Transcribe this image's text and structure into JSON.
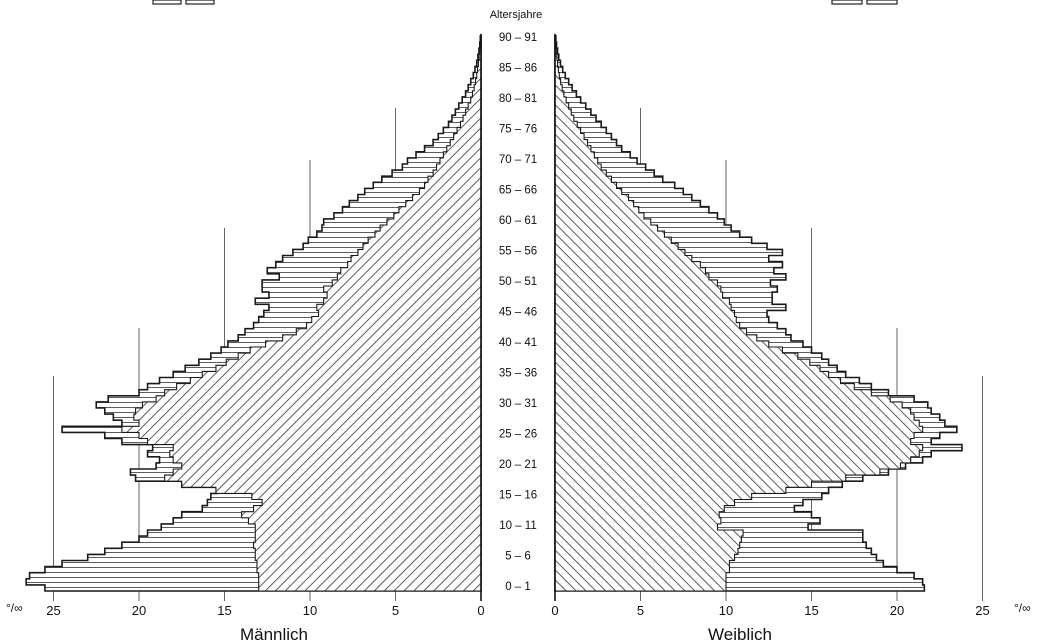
{
  "chart_data": {
    "type": "population-pyramid",
    "title": "Altersjahre",
    "sides": {
      "left": {
        "label": "Männlich"
      },
      "right": {
        "label": "Weiblich"
      }
    },
    "unit_symbol": "°/∞",
    "age_range": [
      0,
      91
    ],
    "age_labels": [
      "0 – 1",
      "5 – 6",
      "10 – 11",
      "15 – 16",
      "20 – 21",
      "25 – 26",
      "30 – 31",
      "35 – 36",
      "40 – 41",
      "45 – 46",
      "50 – 51",
      "55 – 56",
      "60 – 61",
      "65 – 66",
      "70 – 71",
      "75 – 76",
      "80 – 81",
      "85 – 86",
      "90 – 91"
    ],
    "x_ticks": [
      0,
      5,
      10,
      15,
      20,
      25
    ],
    "xlim": [
      0,
      25
    ],
    "grid": true,
    "legend": "top (cut off)",
    "colors": {
      "line": "#222222",
      "background": "#ffffff"
    },
    "series": [
      {
        "side": "male",
        "kind": "outer (horizontal hatch)",
        "values": [
          25.5,
          26.6,
          26.4,
          25.5,
          24.5,
          23.0,
          22.0,
          21.0,
          20.0,
          19.5,
          18.7,
          18.0,
          17.5,
          16.3,
          16.0,
          15.8,
          15.4,
          17.5,
          20.2,
          20.5,
          19.0,
          18.8,
          19.5,
          19.2,
          21.0,
          22.0,
          24.5,
          21.0,
          21.5,
          22.0,
          22.5,
          21.8,
          20.0,
          19.5,
          18.8,
          18.0,
          17.3,
          16.5,
          15.8,
          15.2,
          14.8,
          14.2,
          13.8,
          13.3,
          13.0,
          12.7,
          12.4,
          13.2,
          12.4,
          12.8,
          12.8,
          11.8,
          12.5,
          12.0,
          11.6,
          11.0,
          10.4,
          10.1,
          9.6,
          9.3,
          9.2,
          8.6,
          8.1,
          7.7,
          7.2,
          6.8,
          6.3,
          5.8,
          5.2,
          4.6,
          4.3,
          3.8,
          3.3,
          2.8,
          2.5,
          2.2,
          1.9,
          1.7,
          1.5,
          1.3,
          1.1,
          0.9,
          0.75,
          0.6,
          0.45,
          0.35,
          0.25,
          0.18,
          0.12,
          0.07,
          0.04
        ]
      },
      {
        "side": "male",
        "kind": "inner (diagonal hatch)",
        "values": [
          13.0,
          13.0,
          13.0,
          13.1,
          13.1,
          13.2,
          13.2,
          13.3,
          13.2,
          13.2,
          13.2,
          13.6,
          14.0,
          13.3,
          12.8,
          13.4,
          15.5,
          17.5,
          18.5,
          18.0,
          17.5,
          18.0,
          18.2,
          18.0,
          19.5,
          20.0,
          21.0,
          20.0,
          20.3,
          20.2,
          19.8,
          19.0,
          18.5,
          17.8,
          17.0,
          16.3,
          15.5,
          14.9,
          14.2,
          13.5,
          12.6,
          11.6,
          10.8,
          10.2,
          9.9,
          9.5,
          9.6,
          9.2,
          9.0,
          9.2,
          8.7,
          8.4,
          8.2,
          7.8,
          7.6,
          7.2,
          6.9,
          6.6,
          6.2,
          5.9,
          5.5,
          5.1,
          4.8,
          4.4,
          4.0,
          3.6,
          3.3,
          3.1,
          2.8,
          2.6,
          2.4,
          2.2,
          2.0,
          1.8,
          1.6,
          1.4,
          1.2,
          1.05,
          0.9,
          0.75,
          0.6,
          0.5,
          0.4,
          0.32,
          0.25,
          0.2,
          0.15,
          0.11,
          0.08,
          0.05,
          0.03
        ]
      },
      {
        "side": "female",
        "kind": "outer (horizontal hatch)",
        "values": [
          21.6,
          21.5,
          21.0,
          20.0,
          19.2,
          18.8,
          18.5,
          18.2,
          18.0,
          18.0,
          14.8,
          15.5,
          15.0,
          14.0,
          14.5,
          15.6,
          16.0,
          16.8,
          18.0,
          19.5,
          20.5,
          21.5,
          22.0,
          23.8,
          22.0,
          22.5,
          23.5,
          22.8,
          22.5,
          22.0,
          21.8,
          21.0,
          19.5,
          18.5,
          17.8,
          17.0,
          16.5,
          16.0,
          15.6,
          15.0,
          14.5,
          13.8,
          13.5,
          13.0,
          12.5,
          12.4,
          13.5,
          12.7,
          12.7,
          13.0,
          12.6,
          13.5,
          12.8,
          13.3,
          12.5,
          13.3,
          12.4,
          11.5,
          10.8,
          10.3,
          9.9,
          9.5,
          9.0,
          8.5,
          8.0,
          7.5,
          7.0,
          6.3,
          5.8,
          5.3,
          4.8,
          4.4,
          3.9,
          3.6,
          3.3,
          3.0,
          2.7,
          2.4,
          2.1,
          1.8,
          1.5,
          1.25,
          1.0,
          0.8,
          0.6,
          0.45,
          0.32,
          0.22,
          0.15,
          0.09,
          0.05
        ]
      },
      {
        "side": "female",
        "kind": "inner (diagonal hatch)",
        "values": [
          10.0,
          10.0,
          10.0,
          10.2,
          10.2,
          10.5,
          10.7,
          10.8,
          10.9,
          11.0,
          9.5,
          9.7,
          9.6,
          9.9,
          10.5,
          11.5,
          13.5,
          15.0,
          17.0,
          19.0,
          20.2,
          20.8,
          21.3,
          21.5,
          20.8,
          21.0,
          21.5,
          21.3,
          21.0,
          20.8,
          20.3,
          19.6,
          18.5,
          17.5,
          16.7,
          16.0,
          15.5,
          14.9,
          14.2,
          13.3,
          12.5,
          11.8,
          11.2,
          10.8,
          10.6,
          10.5,
          10.3,
          10.2,
          9.8,
          9.7,
          9.5,
          9.0,
          8.8,
          8.5,
          8.0,
          7.6,
          7.2,
          6.8,
          6.4,
          6.0,
          5.6,
          5.2,
          4.9,
          4.6,
          4.3,
          3.9,
          3.6,
          3.3,
          3.0,
          2.7,
          2.5,
          2.3,
          2.1,
          1.9,
          1.7,
          1.5,
          1.3,
          1.1,
          0.95,
          0.8,
          0.65,
          0.52,
          0.42,
          0.33,
          0.25,
          0.2,
          0.15,
          0.11,
          0.07,
          0.05,
          0.03
        ]
      }
    ]
  }
}
